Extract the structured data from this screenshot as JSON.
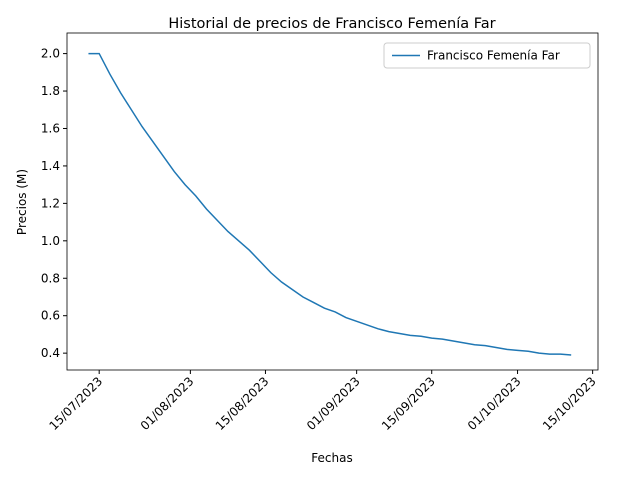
{
  "chart_data": {
    "type": "line",
    "title": "Historial de precios de Francisco Femenía Far",
    "x_label": "Fechas",
    "y_label": "Precios (M)",
    "x": [
      "2023-07-13",
      "2023-07-15",
      "2023-07-17",
      "2023-07-19",
      "2023-07-21",
      "2023-07-23",
      "2023-07-25",
      "2023-07-27",
      "2023-07-29",
      "2023-07-31",
      "2023-08-02",
      "2023-08-04",
      "2023-08-06",
      "2023-08-08",
      "2023-08-10",
      "2023-08-12",
      "2023-08-14",
      "2023-08-16",
      "2023-08-18",
      "2023-08-20",
      "2023-08-22",
      "2023-08-24",
      "2023-08-26",
      "2023-08-28",
      "2023-08-30",
      "2023-09-01",
      "2023-09-03",
      "2023-09-05",
      "2023-09-07",
      "2023-09-09",
      "2023-09-11",
      "2023-09-13",
      "2023-09-15",
      "2023-09-17",
      "2023-09-19",
      "2023-09-21",
      "2023-09-23",
      "2023-09-25",
      "2023-09-27",
      "2023-09-29",
      "2023-10-01",
      "2023-10-03",
      "2023-10-05",
      "2023-10-07",
      "2023-10-09",
      "2023-10-11"
    ],
    "series": [
      {
        "name": "Francisco Femenía Far",
        "color": "#1f77b4",
        "values": [
          2.0,
          2.0,
          1.89,
          1.79,
          1.7,
          1.61,
          1.53,
          1.45,
          1.37,
          1.3,
          1.24,
          1.17,
          1.11,
          1.05,
          1.0,
          0.95,
          0.89,
          0.83,
          0.78,
          0.74,
          0.7,
          0.67,
          0.64,
          0.62,
          0.59,
          0.57,
          0.55,
          0.53,
          0.515,
          0.505,
          0.495,
          0.49,
          0.48,
          0.475,
          0.465,
          0.455,
          0.445,
          0.44,
          0.43,
          0.42,
          0.415,
          0.41,
          0.4,
          0.395,
          0.395,
          0.39
        ]
      }
    ],
    "xlim": [
      "2023-07-09",
      "2023-10-16"
    ],
    "xticks": [
      {
        "value": "2023-07-15",
        "label": "15/07/2023"
      },
      {
        "value": "2023-08-01",
        "label": "01/08/2023"
      },
      {
        "value": "2023-08-15",
        "label": "15/08/2023"
      },
      {
        "value": "2023-09-01",
        "label": "01/09/2023"
      },
      {
        "value": "2023-09-15",
        "label": "15/09/2023"
      },
      {
        "value": "2023-10-01",
        "label": "01/10/2023"
      },
      {
        "value": "2023-10-15",
        "label": "15/10/2023"
      }
    ],
    "ylim": [
      0.31,
      2.11
    ],
    "yticks": [
      {
        "value": 0.4,
        "label": "0.4"
      },
      {
        "value": 0.6,
        "label": "0.6"
      },
      {
        "value": 0.8,
        "label": "0.8"
      },
      {
        "value": 1,
        "label": "1.0"
      },
      {
        "value": 1.2,
        "label": "1.2"
      },
      {
        "value": 1.4,
        "label": "1.4"
      },
      {
        "value": 1.6,
        "label": "1.6"
      },
      {
        "value": 1.8,
        "label": "1.8"
      },
      {
        "value": 2,
        "label": "2.0"
      }
    ],
    "legend": "upper right"
  }
}
